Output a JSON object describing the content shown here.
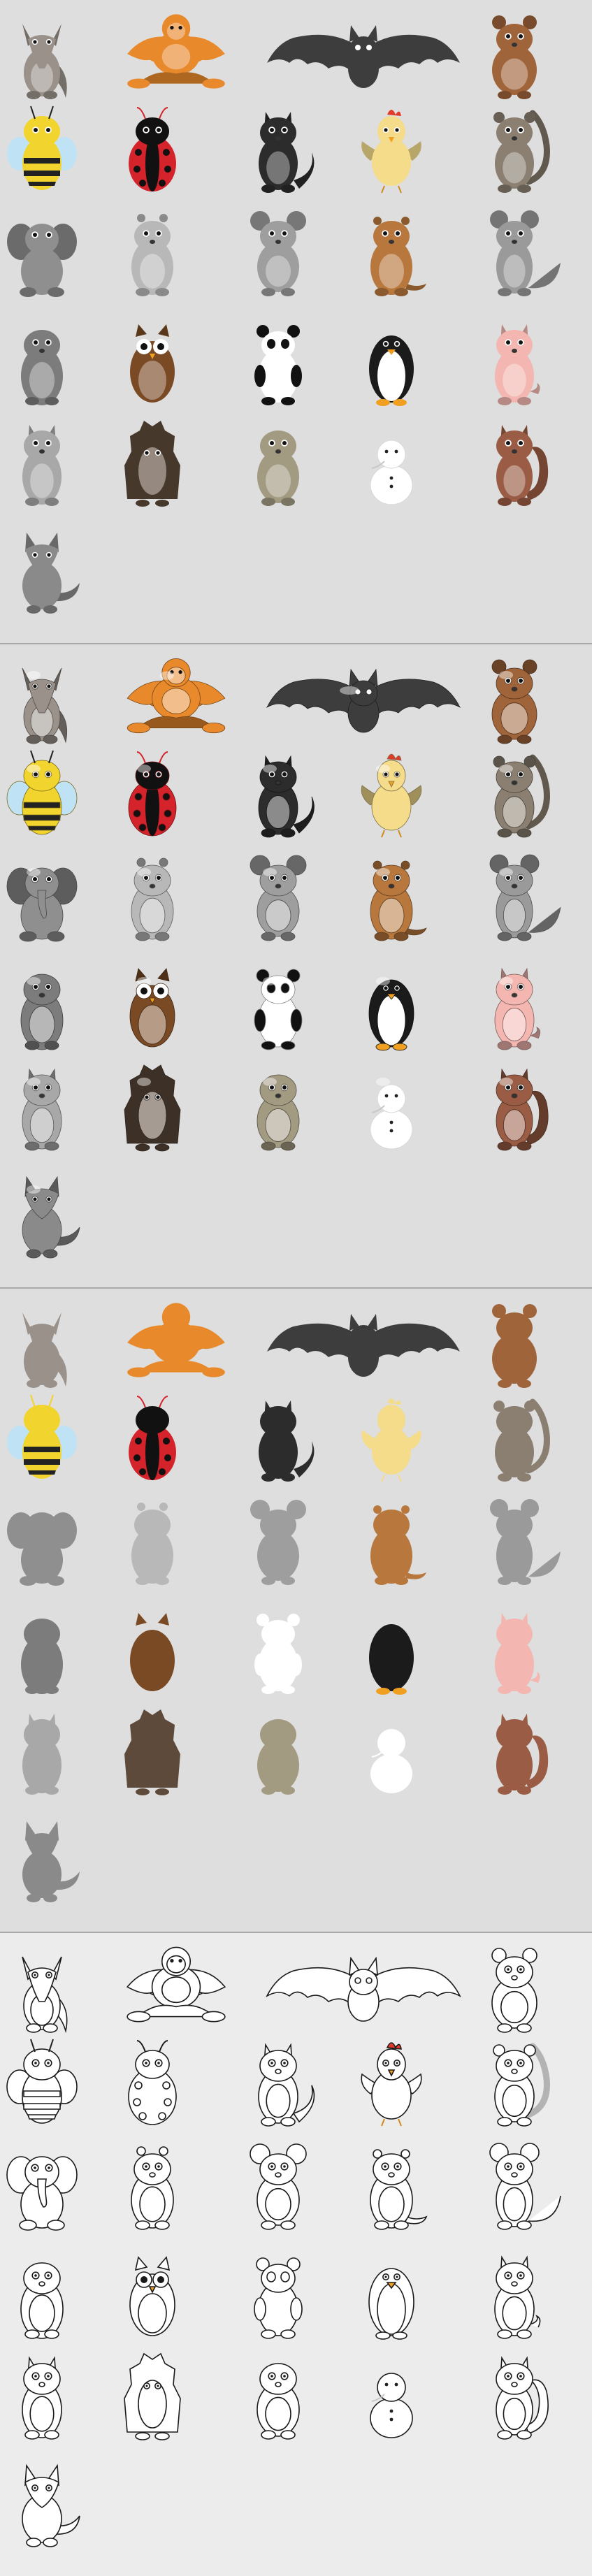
{
  "sheet": {
    "panels": [
      {
        "name": "color-flat",
        "style": "color"
      },
      {
        "name": "color-glossy",
        "style": "glossy"
      },
      {
        "name": "silhouettes",
        "style": "silhouette"
      },
      {
        "name": "outlines",
        "style": "outline"
      }
    ],
    "animals": [
      {
        "id": "aardvark",
        "kind": "aardvark",
        "color": "#9a928a"
      },
      {
        "id": "orangutan",
        "kind": "ape",
        "color": "#e8892c"
      },
      {
        "id": "bat",
        "kind": "bat",
        "color": "#3d3d3d"
      },
      {
        "id": "bear",
        "kind": "bear",
        "color": "#a0643a"
      },
      {
        "id": "bee",
        "kind": "bee",
        "color": "#f2d42e"
      },
      {
        "id": "ladybug",
        "kind": "ladybug",
        "color": "#d4232a"
      },
      {
        "id": "cat",
        "kind": "cat",
        "color": "#2c2c2c"
      },
      {
        "id": "chicken",
        "kind": "chicken",
        "color": "#f5dc8a"
      },
      {
        "id": "lemur",
        "kind": "lemur",
        "color": "#8a7f70"
      },
      {
        "id": "elephant",
        "kind": "elephant",
        "color": "#8f8f8f"
      },
      {
        "id": "hippo",
        "kind": "hippo",
        "color": "#b8b8b8"
      },
      {
        "id": "koala",
        "kind": "koala",
        "color": "#9e9e9e"
      },
      {
        "id": "groundhog",
        "kind": "groundhog",
        "color": "#b8783d"
      },
      {
        "id": "mouse",
        "kind": "mouse",
        "color": "#9a9a9a"
      },
      {
        "id": "mole",
        "kind": "mole",
        "color": "#7c7c7c"
      },
      {
        "id": "owl",
        "kind": "owl",
        "color": "#7a4a24"
      },
      {
        "id": "panda",
        "kind": "panda",
        "color": "#ffffff"
      },
      {
        "id": "penguin",
        "kind": "penguin",
        "color": "#1b1b1b"
      },
      {
        "id": "pig",
        "kind": "pig",
        "color": "#f3b6b0"
      },
      {
        "id": "raccoon",
        "kind": "raccoon",
        "color": "#a8a8a8"
      },
      {
        "id": "hedgehog",
        "kind": "hedgehog",
        "color": "#5e4a3a"
      },
      {
        "id": "sloth",
        "kind": "sloth",
        "color": "#a39a82"
      },
      {
        "id": "snowman",
        "kind": "snowman",
        "color": "#ffffff"
      },
      {
        "id": "squirrel",
        "kind": "squirrel",
        "color": "#9a5c44"
      },
      {
        "id": "wolf",
        "kind": "wolf",
        "color": "#8a8a8a"
      }
    ]
  }
}
